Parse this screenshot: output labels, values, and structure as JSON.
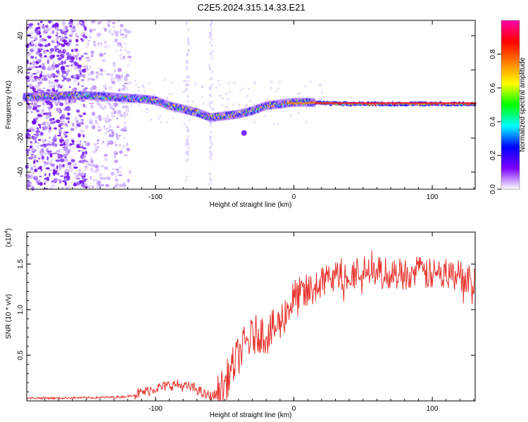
{
  "title": "C2E5.2024.315.14.33.E21",
  "chart_data": [
    {
      "type": "heatmap",
      "xlabel": "Height of straight line (km)",
      "ylabel": "Frequency (Hz)",
      "xlim": [
        -193,
        131
      ],
      "ylim": [
        -50,
        49
      ],
      "x_ticks": [
        -100,
        0,
        100
      ],
      "y_ticks": [
        40,
        20,
        0,
        -20,
        -40
      ],
      "colorbar": {
        "label": "Normalized spectral amplitude",
        "range": [
          0,
          1
        ],
        "ticks": [
          0.0,
          0.2,
          0.4,
          0.6,
          0.8
        ],
        "colors": [
          "#ffffff",
          "#7b00ff",
          "#0000ff",
          "#00ffff",
          "#00ff00",
          "#ffff00",
          "#ff8000",
          "#ff0000",
          "#ff00aa"
        ]
      },
      "ridge": {
        "x": [
          -195,
          -160,
          -150,
          -140,
          -130,
          -120,
          -110,
          -100,
          -90,
          -80,
          -70,
          -60,
          -50,
          -40,
          -30,
          -20,
          -10,
          0,
          10,
          20,
          40,
          60,
          80,
          100,
          131
        ],
        "y": [
          4,
          5,
          5,
          4.5,
          4,
          3.5,
          3,
          2,
          -1,
          -3,
          -5,
          -8,
          -7,
          -6,
          -4,
          -1,
          0,
          1,
          1,
          0.5,
          0,
          0,
          0,
          0,
          0
        ]
      }
    },
    {
      "type": "line",
      "xlabel": "Height of straight line (km)",
      "ylabel": "SNR (10 * v/v)",
      "y_scale_label": "(x10",
      "y_scale_exp": "4",
      "xlim": [
        -193,
        131
      ],
      "ylim": [
        0,
        18500
      ],
      "x_ticks": [
        -100,
        0,
        100
      ],
      "y_ticks": [
        0.5,
        1.0,
        1.5
      ],
      "color": "#e8302a",
      "series": [
        {
          "x": [
            -193,
            -180,
            -170,
            -160,
            -150,
            -140,
            -130,
            -120,
            -110,
            -100,
            -95,
            -90,
            -85,
            -80,
            -75,
            -70,
            -65,
            -60,
            -55,
            -50,
            -45,
            -40,
            -35,
            -30,
            -25,
            -20,
            -15,
            -10,
            -5,
            0,
            5,
            10,
            15,
            20,
            30,
            40,
            50,
            60,
            70,
            80,
            90,
            100,
            110,
            120,
            131
          ],
          "y": [
            300,
            320,
            300,
            350,
            330,
            380,
            400,
            500,
            900,
            1400,
            1500,
            1700,
            1800,
            1600,
            1500,
            1300,
            700,
            500,
            700,
            1800,
            3500,
            5000,
            6200,
            7000,
            7500,
            7200,
            7800,
            8500,
            10000,
            11200,
            11500,
            11800,
            12500,
            13000,
            13600,
            14000,
            14200,
            14100,
            13900,
            14000,
            14100,
            13800,
            14000,
            13700,
            13500
          ]
        }
      ]
    }
  ]
}
